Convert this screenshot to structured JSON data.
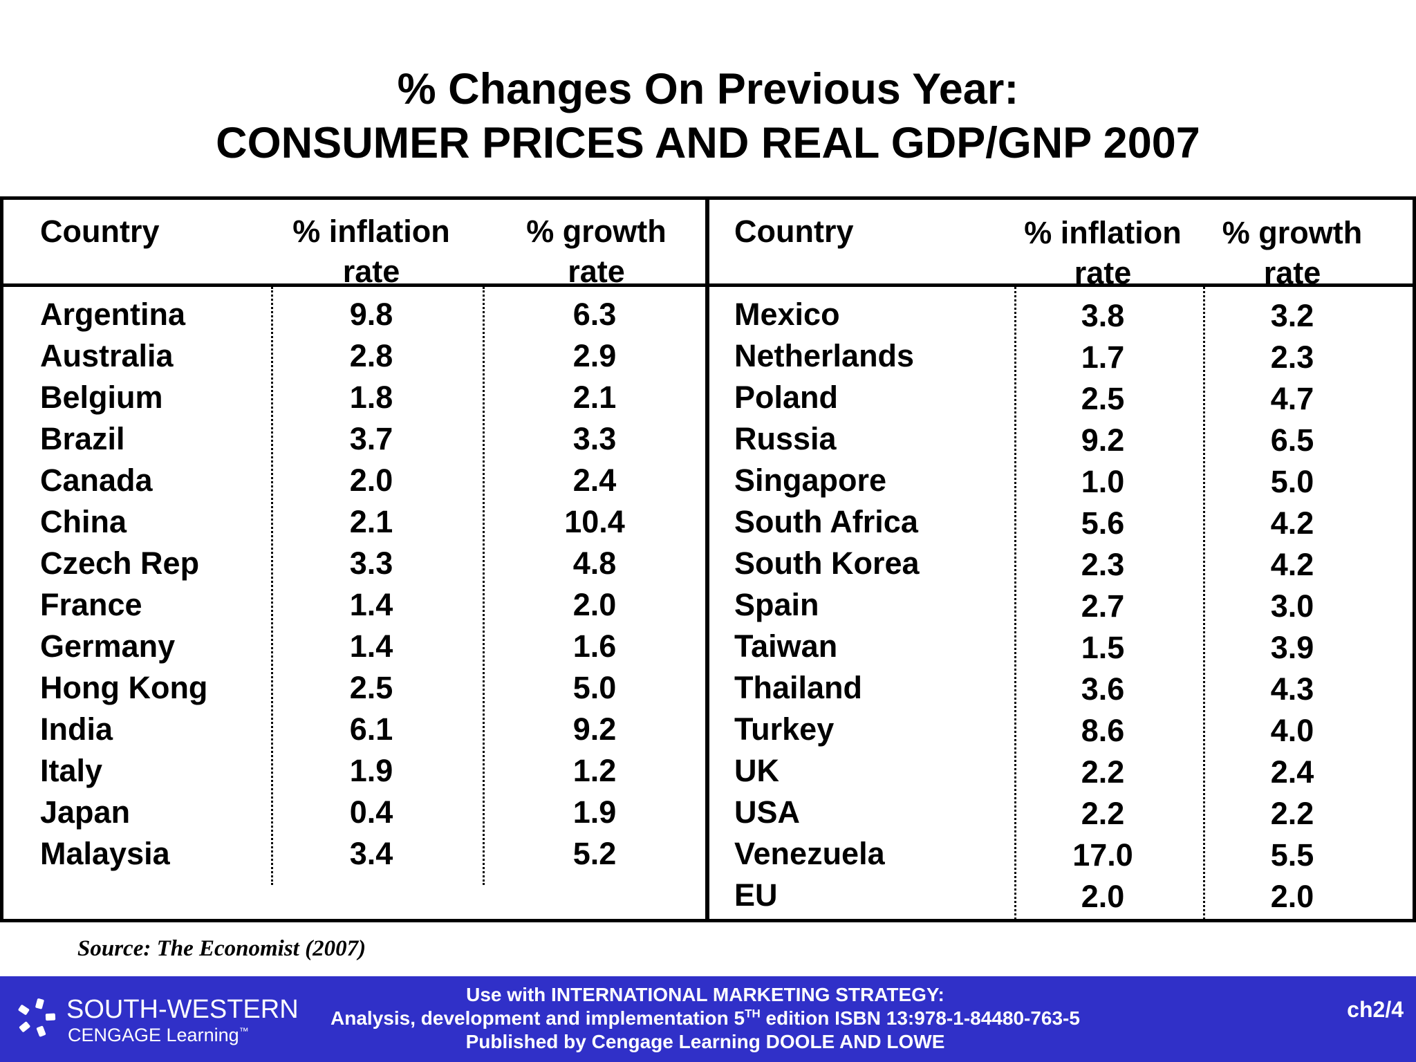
{
  "title": {
    "line1": "% Changes On Previous Year:",
    "line2": "CONSUMER PRICES AND REAL GDP/GNP 2007"
  },
  "table": {
    "headers": {
      "country": "Country",
      "inflation_top": "% inflation",
      "inflation_bottom": "rate",
      "growth_top": "% growth",
      "growth_bottom": "rate"
    },
    "left_rows": [
      {
        "country": "Argentina",
        "inflation": "9.8",
        "growth": "6.3"
      },
      {
        "country": "Australia",
        "inflation": "2.8",
        "growth": "2.9"
      },
      {
        "country": "Belgium",
        "inflation": "1.8",
        "growth": "2.1"
      },
      {
        "country": "Brazil",
        "inflation": "3.7",
        "growth": "3.3"
      },
      {
        "country": "Canada",
        "inflation": "2.0",
        "growth": "2.4"
      },
      {
        "country": "China",
        "inflation": "2.1",
        "growth": "10.4"
      },
      {
        "country": "Czech Rep",
        "inflation": "3.3",
        "growth": "4.8"
      },
      {
        "country": "France",
        "inflation": "1.4",
        "growth": "2.0"
      },
      {
        "country": "Germany",
        "inflation": "1.4",
        "growth": "1.6"
      },
      {
        "country": "Hong Kong",
        "inflation": "2.5",
        "growth": "5.0"
      },
      {
        "country": "India",
        "inflation": "6.1",
        "growth": "9.2"
      },
      {
        "country": "Italy",
        "inflation": "1.9",
        "growth": "1.2"
      },
      {
        "country": "Japan",
        "inflation": "0.4",
        "growth": "1.9"
      },
      {
        "country": "Malaysia",
        "inflation": "3.4",
        "growth": "5.2"
      }
    ],
    "right_rows": [
      {
        "country": "Mexico",
        "inflation": "3.8",
        "growth": "3.2"
      },
      {
        "country": "Netherlands",
        "inflation": "1.7",
        "growth": "2.3"
      },
      {
        "country": "Poland",
        "inflation": "2.5",
        "growth": "4.7"
      },
      {
        "country": "Russia",
        "inflation": "9.2",
        "growth": "6.5"
      },
      {
        "country": "Singapore",
        "inflation": "1.0",
        "growth": "5.0"
      },
      {
        "country": "South Africa",
        "inflation": "5.6",
        "growth": "4.2"
      },
      {
        "country": "South Korea",
        "inflation": "2.3",
        "growth": "4.2"
      },
      {
        "country": "Spain",
        "inflation": "2.7",
        "growth": "3.0"
      },
      {
        "country": "Taiwan",
        "inflation": "1.5",
        "growth": "3.9"
      },
      {
        "country": "Thailand",
        "inflation": "3.6",
        "growth": "4.3"
      },
      {
        "country": "Turkey",
        "inflation": "8.6",
        "growth": "4.0"
      },
      {
        "country": "UK",
        "inflation": "2.2",
        "growth": "2.4"
      },
      {
        "country": "USA",
        "inflation": "2.2",
        "growth": "2.2"
      },
      {
        "country": "Venezuela",
        "inflation": "17.0",
        "growth": "5.5"
      },
      {
        "country": "EU",
        "inflation": "2.0",
        "growth": "2.0"
      }
    ]
  },
  "source": "Source: The Economist (2007)",
  "footer": {
    "logo_name": "SOUTH-WESTERN",
    "logo_sub": "CENGAGE Learning",
    "logo_tm": "™",
    "line1": "Use with INTERNATIONAL MARKETING STRATEGY:",
    "line2_pre": "Analysis, development and implementation 5",
    "line2_sup": "TH",
    "line2_post": " edition   ISBN 13:978-1-84480-763-5",
    "line3": "Published by Cengage Learning   DOOLE AND LOWE",
    "slide_number": "ch2/4",
    "background_color": "#3030c8"
  }
}
